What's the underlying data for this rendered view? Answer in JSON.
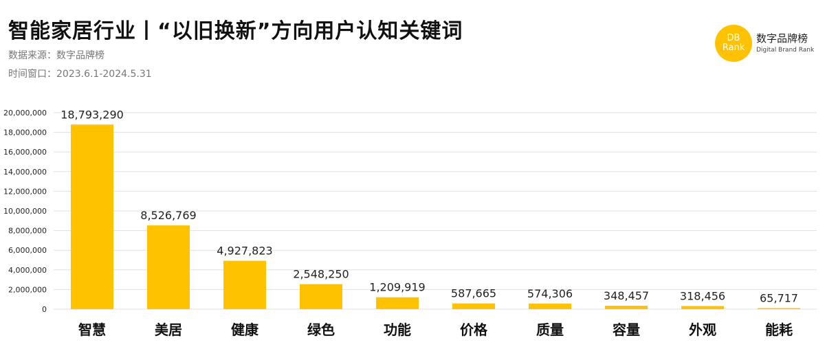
{
  "header": {
    "title": "智能家居行业丨“以旧换新”方向用户认知关键词",
    "source": "数据来源：数字品牌榜",
    "period": "时间窗口：2023.6.1-2024.5.31"
  },
  "logo": {
    "mark_line1": "DB",
    "mark_line2": "Rank",
    "name_cn": "数字品牌榜",
    "name_en": "Digital Brand Rank",
    "color": "#ffc200"
  },
  "colors": {
    "bar": "#ffc200",
    "grid": "#e0e0e0",
    "axis_text": "#222222"
  },
  "chart_data": {
    "type": "bar",
    "categories": [
      "智慧",
      "美居",
      "健康",
      "绿色",
      "功能",
      "价格",
      "质量",
      "容量",
      "外观",
      "能耗"
    ],
    "values": [
      18793290,
      8526769,
      4927823,
      2548250,
      1209919,
      587665,
      574306,
      348457,
      318456,
      65717
    ],
    "value_labels": [
      "18,793,290",
      "8,526,769",
      "4,927,823",
      "2,548,250",
      "1,209,919",
      "587,665",
      "574,306",
      "348,457",
      "318,456",
      "65,717"
    ],
    "yticks": [
      0,
      2000000,
      4000000,
      6000000,
      8000000,
      10000000,
      12000000,
      14000000,
      16000000,
      18000000,
      20000000
    ],
    "ytick_labels": [
      "0",
      "2,000,000",
      "4,000,000",
      "6,000,000",
      "8,000,000",
      "10,000,000",
      "12,000,000",
      "14,000,000",
      "16,000,000",
      "18,000,000",
      "20,000,000"
    ],
    "ylim": [
      0,
      20000000
    ],
    "grid": true,
    "legend": "none"
  }
}
